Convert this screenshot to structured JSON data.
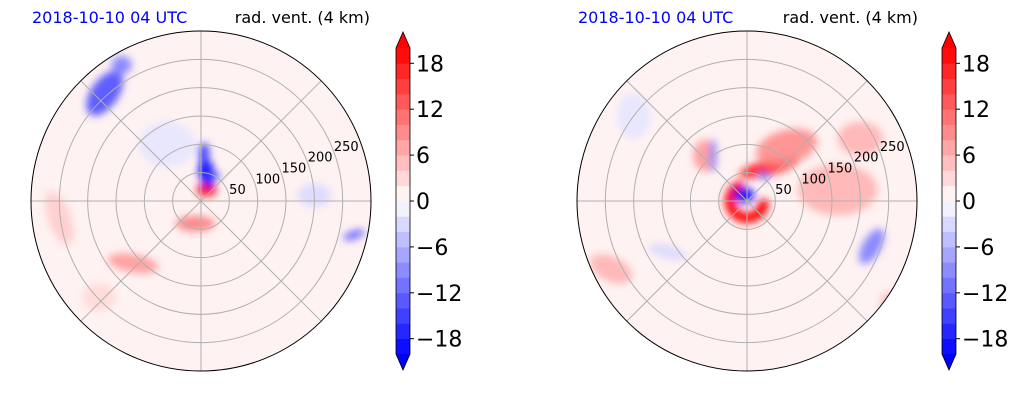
{
  "colors": {
    "positive": "#ff0000",
    "negative": "#0000ff",
    "neutral": "#ffffff",
    "title_left": "#0000ff",
    "grid": "#b0b0b0"
  },
  "chart_data": [
    {
      "type": "heatmap",
      "projection": "polar",
      "title_left": "2018-10-10 04 UTC",
      "title_right": "rad. vent. (4 km)",
      "radial_ticks": [
        "50",
        "100",
        "150",
        "200",
        "250"
      ],
      "radial_tick_values": [
        50,
        100,
        150,
        200,
        250
      ],
      "r_max": 300,
      "grid": true,
      "angular_gridline_deg": 45,
      "colorbar": {
        "ticks": [
          "18",
          "12",
          "6",
          "0",
          "−6",
          "−12",
          "−18"
        ],
        "tick_values": [
          18,
          12,
          6,
          0,
          -6,
          -12,
          -18
        ],
        "vmin": -20,
        "vmax": 20,
        "levels": 20,
        "colormap": "bwr",
        "extend": "both"
      },
      "features": [
        {
          "kind": "blob",
          "sign": 1,
          "x": 10,
          "y": 20,
          "rx": 18,
          "ry": 12,
          "rot": 0,
          "value": 20
        },
        {
          "kind": "blob",
          "sign": -1,
          "x": 10,
          "y": 50,
          "rx": 14,
          "ry": 26,
          "rot": -10,
          "value": 20
        },
        {
          "kind": "blob",
          "sign": -1,
          "x": 5,
          "y": 85,
          "rx": 10,
          "ry": 18,
          "rot": 0,
          "value": 16
        },
        {
          "kind": "blob",
          "sign": -1,
          "x": 25,
          "y": 45,
          "rx": 10,
          "ry": 6,
          "rot": 0,
          "value": 14
        },
        {
          "kind": "blob",
          "sign": 1,
          "x": -10,
          "y": -40,
          "rx": 35,
          "ry": 14,
          "rot": 0,
          "value": 10
        },
        {
          "kind": "blob",
          "sign": 1,
          "x": -120,
          "y": -110,
          "rx": 45,
          "ry": 16,
          "rot": 10,
          "value": 8
        },
        {
          "kind": "blob",
          "sign": -1,
          "x": -170,
          "y": 190,
          "rx": 24,
          "ry": 45,
          "rot": 35,
          "value": 14
        },
        {
          "kind": "blob",
          "sign": -1,
          "x": -140,
          "y": 240,
          "rx": 18,
          "ry": 16,
          "rot": 0,
          "value": 10
        },
        {
          "kind": "blob",
          "sign": 1,
          "x": -250,
          "y": -30,
          "rx": 20,
          "ry": 50,
          "rot": -20,
          "value": 4
        },
        {
          "kind": "blob",
          "sign": -1,
          "x": 270,
          "y": -60,
          "rx": 20,
          "ry": 8,
          "rot": -20,
          "value": 12
        },
        {
          "kind": "blob",
          "sign": -1,
          "x": 200,
          "y": 10,
          "rx": 30,
          "ry": 20,
          "rot": 0,
          "value": 3
        },
        {
          "kind": "blob",
          "sign": -1,
          "x": -60,
          "y": 100,
          "rx": 50,
          "ry": 40,
          "rot": 0,
          "value": 2
        },
        {
          "kind": "blob",
          "sign": 1,
          "x": -180,
          "y": -170,
          "rx": 30,
          "ry": 25,
          "rot": 0,
          "value": 3
        }
      ]
    },
    {
      "type": "heatmap",
      "projection": "polar",
      "title_left": "2018-10-10 04 UTC",
      "title_right": "rad. vent. (4 km)",
      "radial_ticks": [
        "50",
        "100",
        "150",
        "200",
        "250"
      ],
      "radial_tick_values": [
        50,
        100,
        150,
        200,
        250
      ],
      "r_max": 300,
      "grid": true,
      "angular_gridline_deg": 45,
      "colorbar": {
        "ticks": [
          "18",
          "12",
          "6",
          "0",
          "−6",
          "−12",
          "−18"
        ],
        "tick_values": [
          18,
          12,
          6,
          0,
          -6,
          -12,
          -18
        ],
        "vmin": -20,
        "vmax": 20,
        "levels": 20,
        "colormap": "bwr",
        "extend": "both"
      },
      "features": [
        {
          "kind": "arc",
          "sign": 1,
          "r": 30,
          "a1": 120,
          "a2": 350,
          "width": 18,
          "value": 20
        },
        {
          "kind": "blob",
          "sign": -1,
          "x": -5,
          "y": 10,
          "rx": 18,
          "ry": 14,
          "rot": 0,
          "value": 20
        },
        {
          "kind": "blob",
          "sign": 1,
          "x": 40,
          "y": 60,
          "rx": 55,
          "ry": 14,
          "rot": -15,
          "value": 18
        },
        {
          "kind": "blob",
          "sign": 1,
          "x": 70,
          "y": 95,
          "rx": 55,
          "ry": 30,
          "rot": -15,
          "value": 9
        },
        {
          "kind": "blob",
          "sign": 1,
          "x": 160,
          "y": 20,
          "rx": 70,
          "ry": 45,
          "rot": 0,
          "value": 6
        },
        {
          "kind": "blob",
          "sign": 1,
          "x": 200,
          "y": 110,
          "rx": 40,
          "ry": 30,
          "rot": 0,
          "value": 6
        },
        {
          "kind": "blob",
          "sign": 1,
          "x": -75,
          "y": 80,
          "rx": 20,
          "ry": 28,
          "rot": 0,
          "value": 8
        },
        {
          "kind": "blob",
          "sign": -1,
          "x": -60,
          "y": 80,
          "rx": 6,
          "ry": 30,
          "rot": 0,
          "value": 10
        },
        {
          "kind": "blob",
          "sign": -1,
          "x": 30,
          "y": 45,
          "rx": 10,
          "ry": 7,
          "rot": 0,
          "value": 12
        },
        {
          "kind": "blob",
          "sign": 1,
          "x": -240,
          "y": -120,
          "rx": 40,
          "ry": 22,
          "rot": 25,
          "value": 6
        },
        {
          "kind": "blob",
          "sign": -1,
          "x": 220,
          "y": -80,
          "rx": 16,
          "ry": 35,
          "rot": 30,
          "value": 10
        },
        {
          "kind": "blob",
          "sign": -1,
          "x": -140,
          "y": -90,
          "rx": 35,
          "ry": 12,
          "rot": 15,
          "value": 3
        },
        {
          "kind": "blob",
          "sign": 1,
          "x": 250,
          "y": -180,
          "rx": 15,
          "ry": 20,
          "rot": 0,
          "value": 5
        },
        {
          "kind": "blob",
          "sign": -1,
          "x": -200,
          "y": 150,
          "rx": 30,
          "ry": 40,
          "rot": 0,
          "value": 2
        }
      ]
    }
  ]
}
